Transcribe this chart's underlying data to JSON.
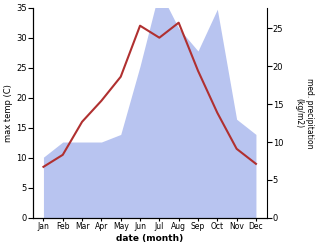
{
  "months": [
    "Jan",
    "Feb",
    "Mar",
    "Apr",
    "May",
    "Jun",
    "Jul",
    "Aug",
    "Sep",
    "Oct",
    "Nov",
    "Dec"
  ],
  "temp": [
    8.5,
    10.5,
    16.0,
    19.5,
    23.5,
    32.0,
    30.0,
    32.5,
    24.5,
    17.5,
    11.5,
    9.0
  ],
  "precip": [
    8.0,
    10.0,
    10.0,
    10.0,
    11.0,
    20.0,
    30.0,
    25.0,
    22.0,
    27.5,
    13.0,
    11.0
  ],
  "temp_color": "#b03030",
  "precip_fill_color": "#b8c4f0",
  "temp_ylim": [
    0,
    35
  ],
  "precip_ylim": [
    0,
    27.708333
  ],
  "temp_yticks": [
    0,
    5,
    10,
    15,
    20,
    25,
    30,
    35
  ],
  "precip_yticks": [
    0,
    5,
    10,
    15,
    20,
    25
  ],
  "ylabel_left": "max temp (C)",
  "ylabel_right": "med. precipitation\n(kg/m2)",
  "xlabel": "date (month)",
  "figsize": [
    3.18,
    2.47
  ],
  "dpi": 100
}
